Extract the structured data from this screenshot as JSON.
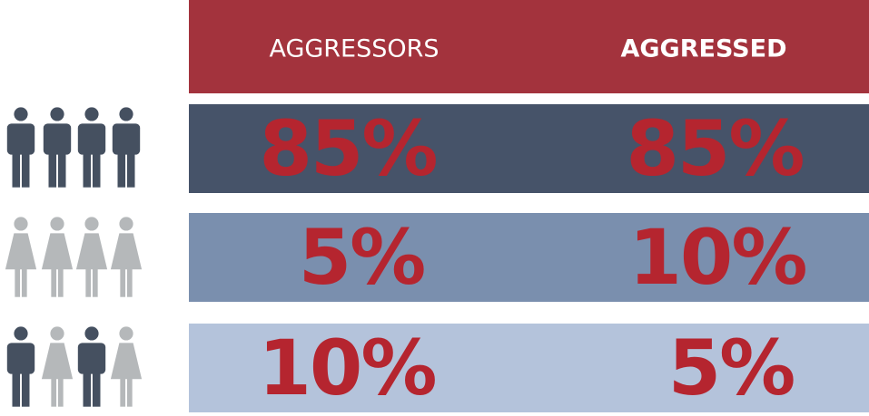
{
  "table": {
    "header": [
      "AGGRESSORS",
      "AGGRESSED"
    ],
    "rows": [
      [
        "85%",
        "85%"
      ],
      [
        "5%",
        "10%"
      ],
      [
        "10%",
        "5%"
      ]
    ]
  }
}
